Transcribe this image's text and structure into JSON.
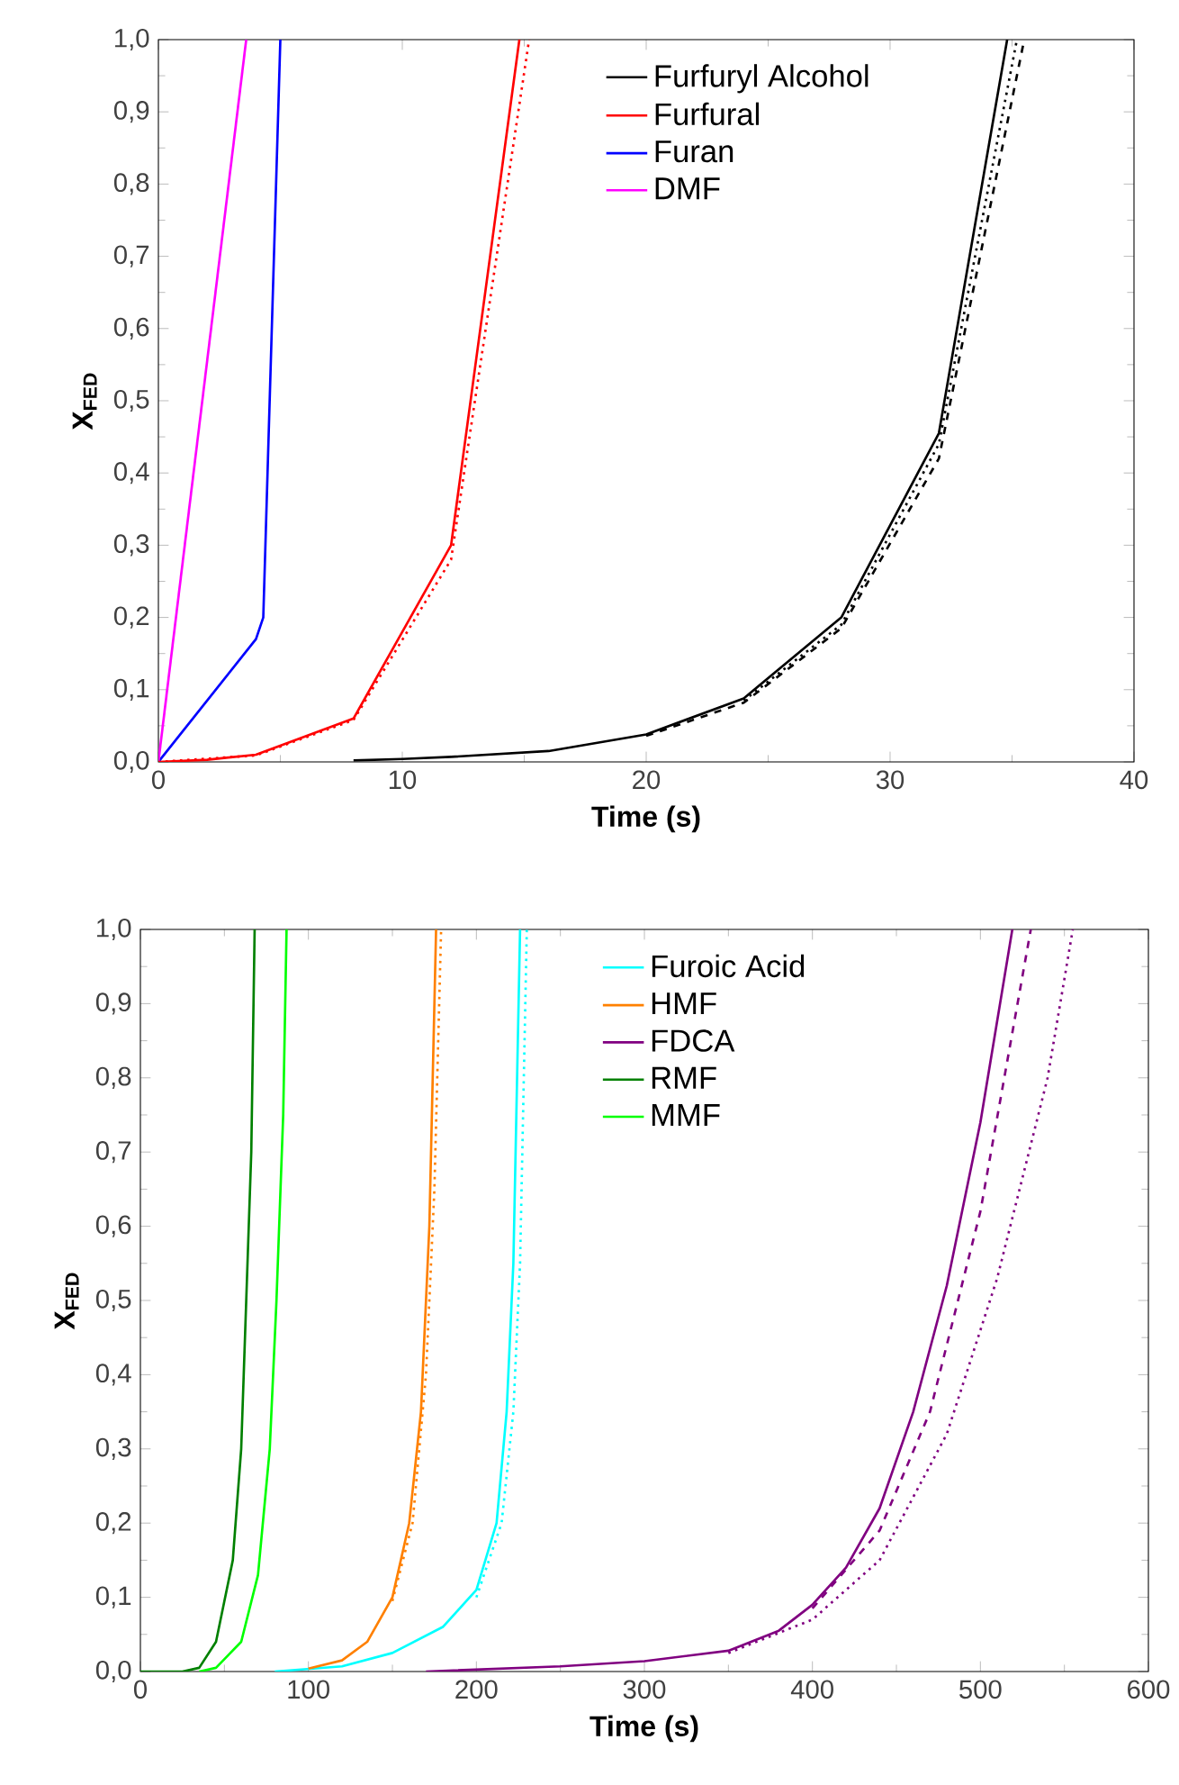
{
  "chart_data": [
    {
      "type": "line",
      "xlabel": "Time (s)",
      "ylabel": "X$_{FED}$",
      "xlim": [
        0,
        40
      ],
      "ylim": [
        0,
        1
      ],
      "xticks": [
        0,
        10,
        20,
        30,
        40
      ],
      "yticks": [
        {
          "value": 0,
          "label": "0,0"
        },
        {
          "value": 0.1,
          "label": "0,1"
        },
        {
          "value": 0.2,
          "label": "0,2"
        },
        {
          "value": 0.3,
          "label": "0,3"
        },
        {
          "value": 0.4,
          "label": "0,4"
        },
        {
          "value": 0.5,
          "label": "0,5"
        },
        {
          "value": 0.6,
          "label": "0,6"
        },
        {
          "value": 0.7,
          "label": "0,7"
        },
        {
          "value": 0.8,
          "label": "0,8"
        },
        {
          "value": 0.9,
          "label": "0,9"
        },
        {
          "value": 1,
          "label": "1,0"
        }
      ],
      "legend": "top right",
      "grid": false,
      "marker": "none",
      "series": [
        {
          "name": "Furfuryl Alcohol",
          "color": "#000000",
          "line_style": "solid",
          "x": [
            8,
            10,
            12,
            16,
            20,
            24,
            28,
            32,
            34.8
          ],
          "values": [
            0.002,
            0.004,
            0.007,
            0.015,
            0.038,
            0.088,
            0.2,
            0.455,
            1.0
          ]
        },
        {
          "name": "Furfural",
          "color": "#ff0000",
          "line_style": "solid",
          "x": [
            0,
            2,
            4,
            8,
            10,
            12,
            14.8
          ],
          "values": [
            0,
            0.003,
            0.01,
            0.06,
            0.18,
            0.3,
            1.0
          ]
        },
        {
          "name": "Furan",
          "color": "#0000ff",
          "line_style": "solid",
          "x": [
            0,
            4,
            4.3,
            5
          ],
          "values": [
            0,
            0.17,
            0.2,
            1.0
          ]
        },
        {
          "name": "DMF",
          "color": "#ff00ff",
          "line_style": "solid",
          "x": [
            0,
            3.6
          ],
          "values": [
            0,
            1.0
          ]
        },
        {
          "color": "#000000",
          "line_style": "dashed",
          "x": [
            20,
            24,
            28,
            32,
            35.5
          ],
          "values": [
            0.036,
            0.082,
            0.185,
            0.42,
            1.0
          ]
        },
        {
          "color": "#000000",
          "line_style": "dotted",
          "x": [
            24,
            28,
            32,
            35.2
          ],
          "values": [
            0.085,
            0.19,
            0.44,
            1.0
          ]
        },
        {
          "color": "#ff0000",
          "line_style": "dotted",
          "x": [
            0,
            4,
            8,
            12,
            15.2
          ],
          "values": [
            0,
            0.009,
            0.058,
            0.28,
            1.0
          ]
        }
      ]
    },
    {
      "type": "line",
      "xlabel": "Time (s)",
      "ylabel": "X$_{FED}$",
      "xlim": [
        0,
        600
      ],
      "ylim": [
        0,
        1
      ],
      "xticks": [
        0,
        100,
        200,
        300,
        400,
        500,
        600
      ],
      "yticks": [
        {
          "value": 0,
          "label": "0,0"
        },
        {
          "value": 0.1,
          "label": "0,1"
        },
        {
          "value": 0.2,
          "label": "0,2"
        },
        {
          "value": 0.3,
          "label": "0,3"
        },
        {
          "value": 0.4,
          "label": "0,4"
        },
        {
          "value": 0.5,
          "label": "0,5"
        },
        {
          "value": 0.6,
          "label": "0,6"
        },
        {
          "value": 0.7,
          "label": "0,7"
        },
        {
          "value": 0.8,
          "label": "0,8"
        },
        {
          "value": 0.9,
          "label": "0,9"
        },
        {
          "value": 1,
          "label": "1,0"
        }
      ],
      "legend": "top right",
      "grid": false,
      "marker": "none",
      "series": [
        {
          "name": "Furoic Acid",
          "color": "#00ffff",
          "line_style": "solid",
          "x": [
            80,
            120,
            150,
            180,
            200,
            212,
            218,
            222,
            226
          ],
          "values": [
            0,
            0.007,
            0.025,
            0.06,
            0.11,
            0.2,
            0.35,
            0.55,
            1.0
          ]
        },
        {
          "name": "HMF",
          "color": "#ff8000",
          "line_style": "solid",
          "x": [
            100,
            120,
            135,
            150,
            160,
            167,
            172,
            176
          ],
          "values": [
            0.004,
            0.015,
            0.04,
            0.1,
            0.2,
            0.35,
            0.6,
            1.0
          ]
        },
        {
          "name": "FDCA",
          "color": "#800080",
          "line_style": "solid",
          "x": [
            170,
            250,
            300,
            350,
            380,
            400,
            420,
            440,
            460,
            480,
            500,
            519
          ],
          "values": [
            0,
            0.007,
            0.014,
            0.028,
            0.055,
            0.09,
            0.14,
            0.22,
            0.35,
            0.52,
            0.74,
            1.0
          ]
        },
        {
          "name": "RMF",
          "color": "#008000",
          "line_style": "solid",
          "x": [
            0,
            25,
            35,
            45,
            55,
            60,
            63,
            66,
            68
          ],
          "values": [
            0,
            0,
            0.005,
            0.04,
            0.15,
            0.3,
            0.5,
            0.7,
            1.0
          ]
        },
        {
          "name": "MMF",
          "color": "#00ff00",
          "line_style": "solid",
          "x": [
            35,
            45,
            60,
            70,
            77,
            81,
            85,
            87
          ],
          "values": [
            0,
            0.005,
            0.04,
            0.13,
            0.3,
            0.5,
            0.75,
            1.0
          ]
        },
        {
          "color": "#800080",
          "line_style": "dashed",
          "x": [
            400,
            440,
            470,
            500,
            530
          ],
          "values": [
            0.085,
            0.19,
            0.35,
            0.62,
            1.0
          ]
        },
        {
          "color": "#800080",
          "line_style": "dotted",
          "x": [
            350,
            400,
            440,
            480,
            510,
            540,
            555
          ],
          "values": [
            0.025,
            0.07,
            0.15,
            0.32,
            0.53,
            0.8,
            1.0
          ]
        },
        {
          "color": "#00ffff",
          "line_style": "dotted",
          "x": [
            200,
            215,
            222,
            226,
            230
          ],
          "values": [
            0.1,
            0.2,
            0.35,
            0.55,
            1.0
          ]
        },
        {
          "color": "#ff8000",
          "line_style": "dotted",
          "x": [
            150,
            162,
            170,
            175,
            179
          ],
          "values": [
            0.095,
            0.2,
            0.4,
            0.65,
            1.0
          ]
        }
      ]
    }
  ]
}
